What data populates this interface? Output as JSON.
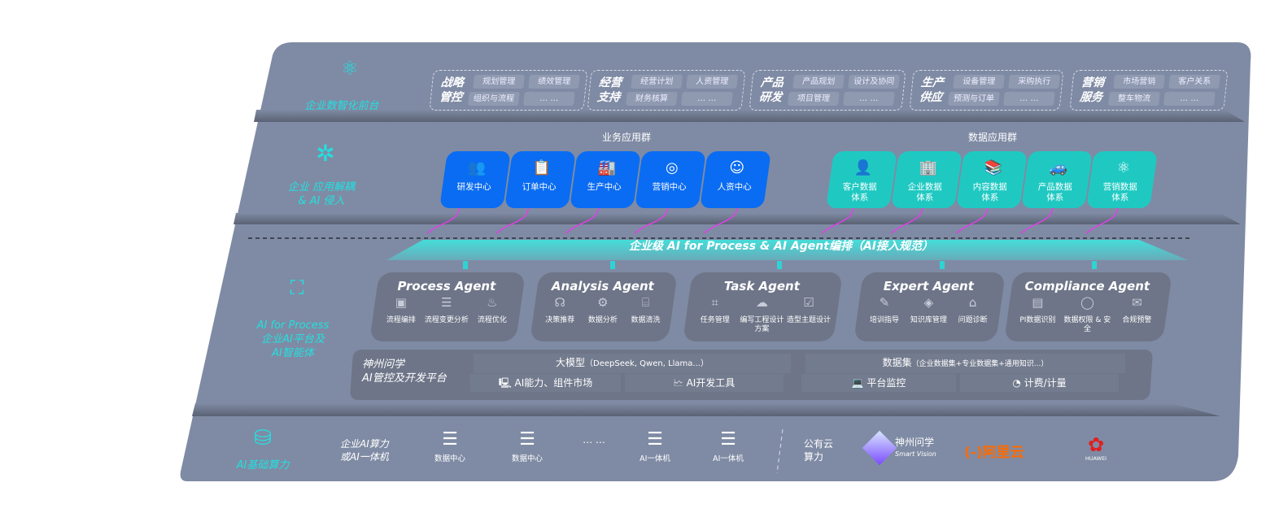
{
  "front_layer": {
    "label": "企业数智化前台",
    "icon": "brain-icon",
    "groups": [
      {
        "title_1": "战略",
        "title_2": "管控",
        "items": [
          "规划管理",
          "绩效管理",
          "组织与流程",
          "… …"
        ]
      },
      {
        "title_1": "经营",
        "title_2": "支持",
        "items": [
          "经营计划",
          "人资管理",
          "财务核算",
          "… …"
        ]
      },
      {
        "title_1": "产品",
        "title_2": "研发",
        "items": [
          "产品规划",
          "设计及协同",
          "项目管理",
          "… …"
        ]
      },
      {
        "title_1": "生产",
        "title_2": "供应",
        "items": [
          "设备管理",
          "采购执行",
          "预测与订单",
          "… …"
        ]
      },
      {
        "title_1": "营销",
        "title_2": "服务",
        "items": [
          "市场营销",
          "客户关系",
          "整车物流",
          "… …"
        ]
      }
    ]
  },
  "app_layer": {
    "label_1": "企业 应用解耦",
    "label_2": "& AI 侵入",
    "business_title": "业务应用群",
    "business_apps": [
      {
        "label": "研发中心",
        "icon": "users-icon"
      },
      {
        "label": "订单中心",
        "icon": "clipboard-icon"
      },
      {
        "label": "生产中心",
        "icon": "factory-icon"
      },
      {
        "label": "营销中心",
        "icon": "target-icon"
      },
      {
        "label": "人资中心",
        "icon": "person-icon"
      }
    ],
    "data_title": "数据应用群",
    "data_apps": [
      {
        "label_1": "客户数据",
        "label_2": "体系",
        "icon": "customer-icon"
      },
      {
        "label_1": "企业数据",
        "label_2": "体系",
        "icon": "building-icon"
      },
      {
        "label_1": "内容数据",
        "label_2": "体系",
        "icon": "books-icon"
      },
      {
        "label_1": "产品数据",
        "label_2": "体系",
        "icon": "car-icon"
      },
      {
        "label_1": "营销数据",
        "label_2": "体系",
        "icon": "atom-icon"
      }
    ]
  },
  "ai_layer": {
    "label_1": "AI for Process",
    "label_2": "企业AI平台及",
    "label_3": "AI智能体",
    "orchestration": "企业级 AI for Process & AI Agent编排（AI接入规范）",
    "agents": [
      {
        "name": "Process Agent",
        "caps": [
          "流程编排",
          "流程变更分析",
          "流程优化"
        ]
      },
      {
        "name": "Analysis Agent",
        "caps": [
          "决策推荐",
          "数据分析",
          "数据清洗"
        ]
      },
      {
        "name": "Task Agent",
        "caps": [
          "任务管理",
          "编写工程设计方案",
          "造型主题设计"
        ]
      },
      {
        "name": "Expert Agent",
        "caps": [
          "培训指导",
          "知识库管理",
          "问题诊断"
        ]
      },
      {
        "name": "Compliance Agent",
        "caps": [
          "PI数据识别",
          "数据权限 & 安全",
          "合规预警"
        ]
      }
    ],
    "platform": {
      "title_1": "神州问学",
      "title_2": "AI管控及开发平台",
      "model": "大模型",
      "model_note": "（DeepSeek, Qwen, Llama...）",
      "dataset": "数据集",
      "dataset_note": "（企业数据集+专业数据集+通用知识...）",
      "market": "AI能力、组件市场",
      "devtools": "AI开发工具",
      "monitor": "平台监控",
      "billing": "计费/计量"
    }
  },
  "infra_layer": {
    "label": "AI基础算力",
    "enterprise_1": "企业AI算力",
    "enterprise_2": "或AI一体机",
    "servers": [
      "数据中心",
      "数据中心",
      "AI一体机",
      "AI一体机"
    ],
    "ellipsis": "… …",
    "public_1": "公有云",
    "public_2": "算力",
    "vendors": {
      "smartvision_cn": "神州问学",
      "smartvision_en": "Smart Vision",
      "aliyun": "阿里云",
      "huawei": "HUAWEI"
    }
  },
  "colors": {
    "panel": "#7f8ba4",
    "cyan": "#22e0e0",
    "blue": "#0a6cf2",
    "teal": "#1fc9c2",
    "magenta": "#e040e8",
    "aliyun": "#ff6a00",
    "huawei": "#e02020"
  }
}
